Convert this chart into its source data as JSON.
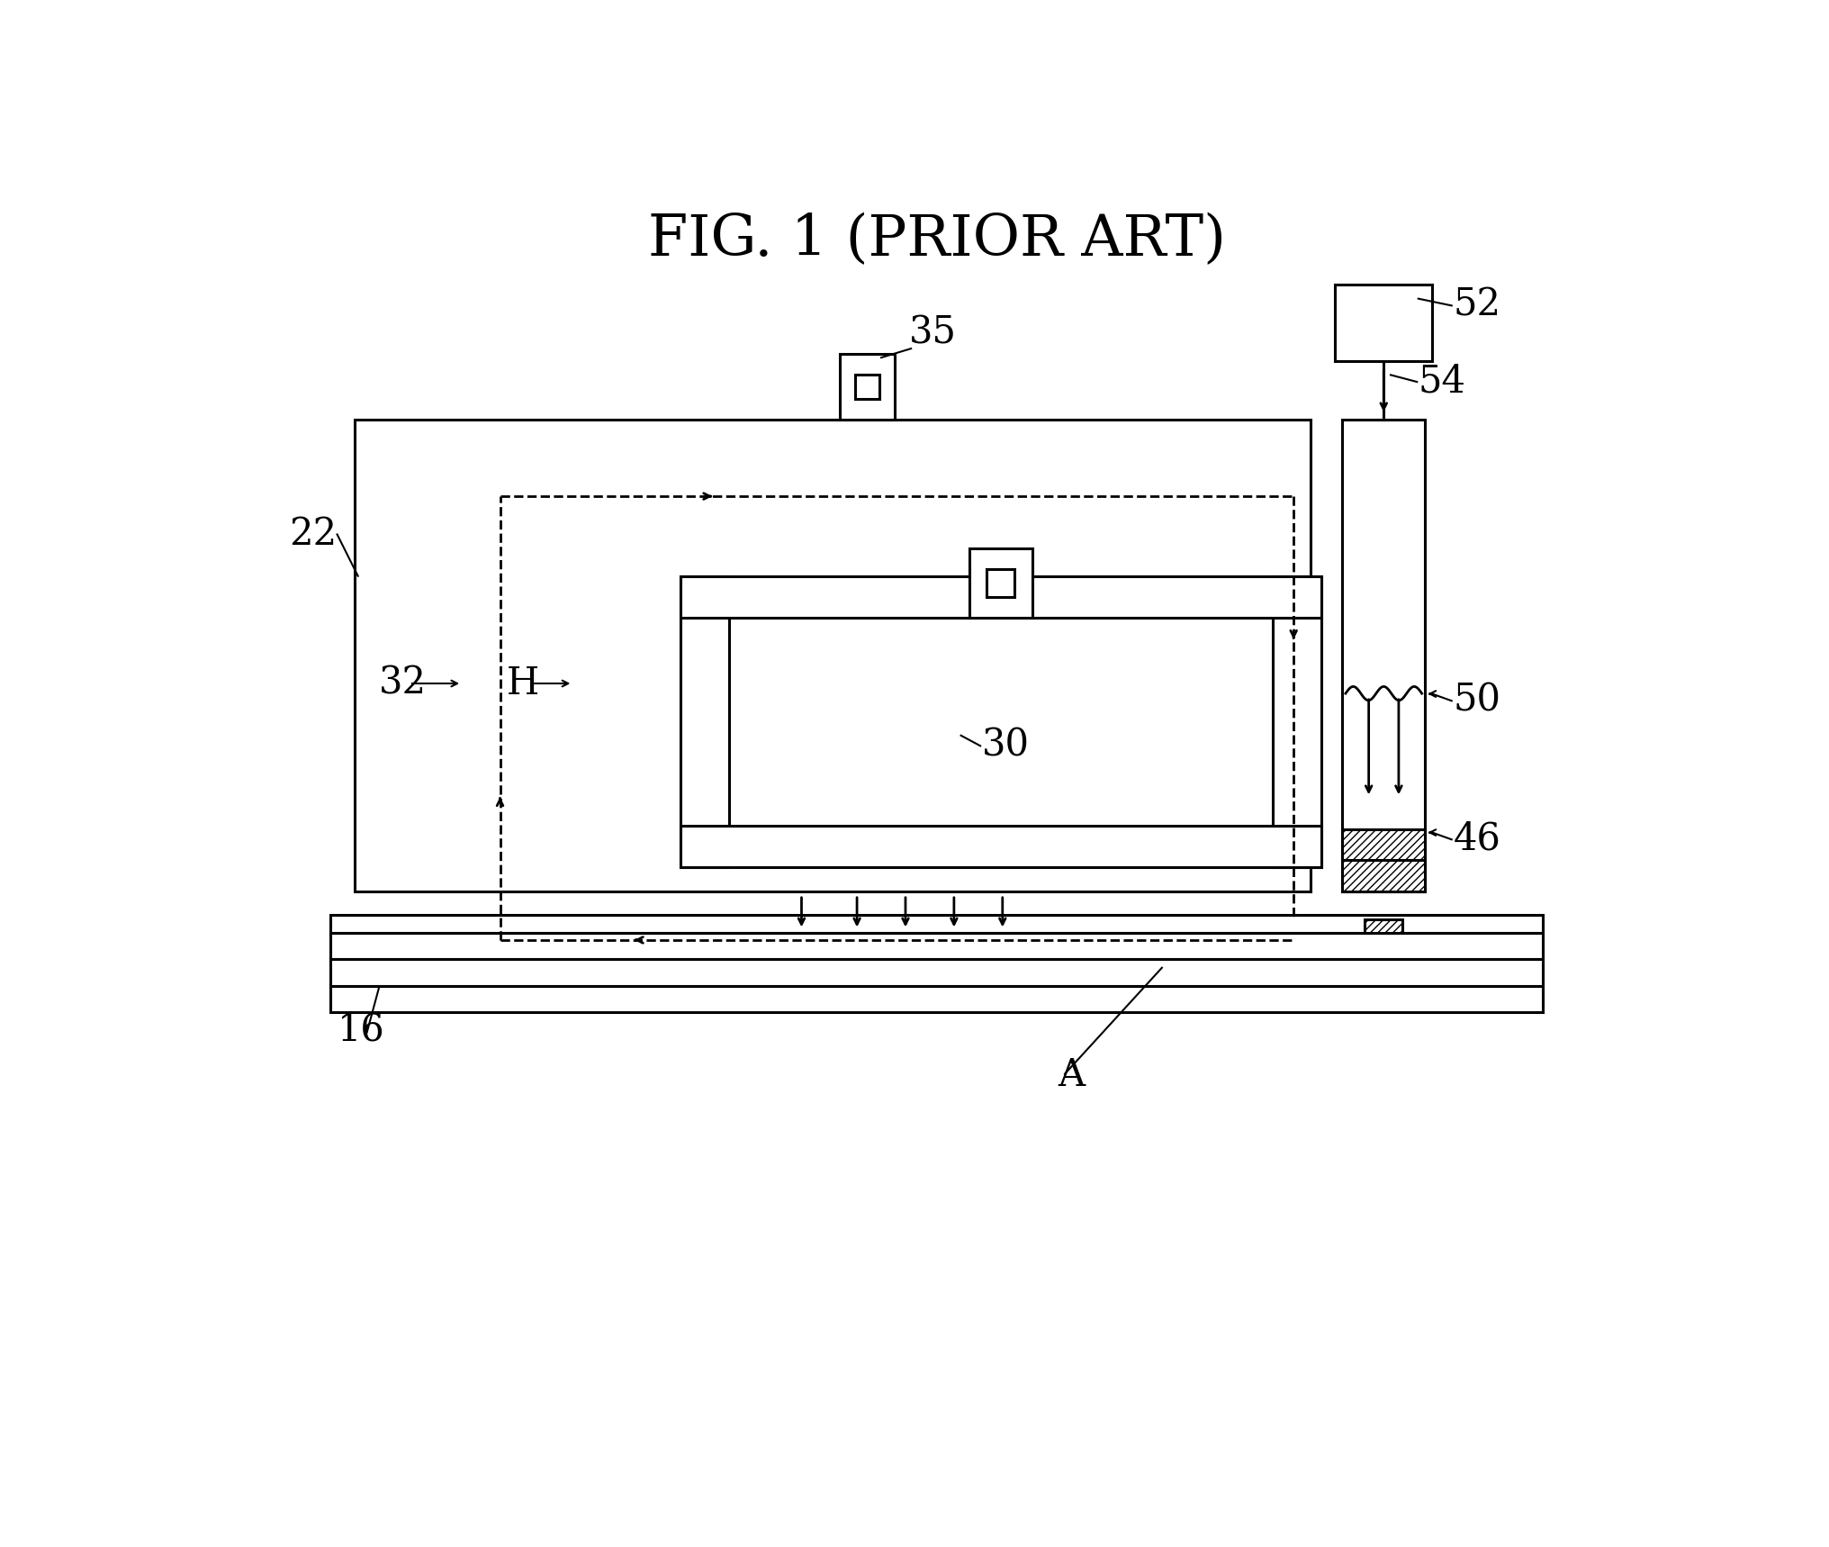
{
  "title": "FIG. 1 (PRIOR ART)",
  "bg_color": "#ffffff",
  "lc": "#000000",
  "lw": 2.2,
  "fig_width": 20.32,
  "fig_height": 17.18
}
